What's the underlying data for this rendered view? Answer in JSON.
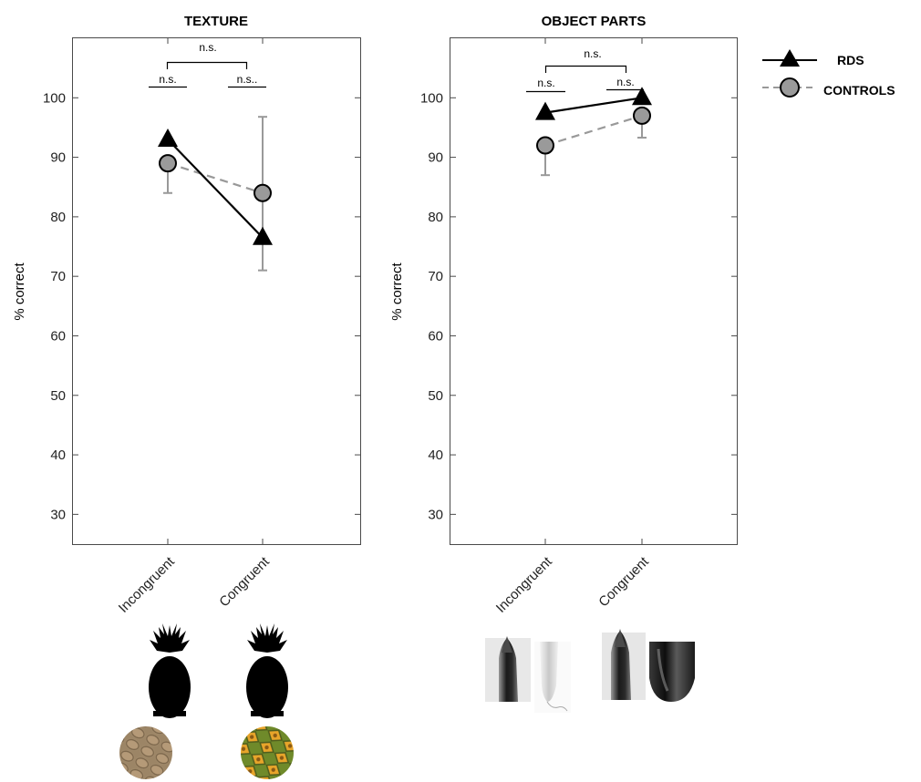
{
  "chart_data": [
    {
      "type": "line",
      "title": "TEXTURE",
      "ylabel": "% correct",
      "categories": [
        "Incongruent",
        "Congruent"
      ],
      "ylim": [
        25,
        110
      ],
      "yticks": [
        30,
        40,
        50,
        60,
        70,
        80,
        90,
        100
      ],
      "series": [
        {
          "name": "RDS",
          "values": [
            93,
            76.5
          ],
          "err_low": [
            null,
            null
          ],
          "err_high": [
            null,
            null
          ]
        },
        {
          "name": "CONTROLS",
          "values": [
            89,
            84
          ],
          "err_low": [
            84,
            71
          ],
          "err_high": [
            null,
            96.8
          ]
        }
      ],
      "annotations": {
        "top": "n.s.",
        "left": "n.s.",
        "right": "n.s.."
      },
      "stimuli": [
        "pineapple-silhouette",
        "snake-skin-texture-disc",
        "pineapple-silhouette",
        "pineapple-skin-texture-disc"
      ]
    },
    {
      "type": "line",
      "title": "OBJECT PARTS",
      "ylabel": "% correct",
      "categories": [
        "Incongruent",
        "Congruent"
      ],
      "ylim": [
        25,
        110
      ],
      "yticks": [
        30,
        40,
        50,
        60,
        70,
        80,
        90,
        100
      ],
      "series": [
        {
          "name": "RDS",
          "values": [
            97.5,
            100
          ],
          "err_low": [
            null,
            null
          ],
          "err_high": [
            null,
            null
          ]
        },
        {
          "name": "CONTROLS",
          "values": [
            92,
            97
          ],
          "err_low": [
            87,
            93.3
          ],
          "err_high": [
            null,
            null
          ]
        }
      ],
      "annotations": {
        "top": "n.s.",
        "left": "n.s.",
        "right": "n.s."
      },
      "stimuli": [
        "eggplant-tip-photo",
        "pestle-tip-photo",
        "eggplant-tip-photo",
        "eggplant-end-photo"
      ]
    }
  ],
  "legend": [
    {
      "name": "RDS",
      "marker": "triangle",
      "color": "#000000",
      "line": "solid"
    },
    {
      "name": "CONTROLS",
      "marker": "circle",
      "color": "#999999",
      "line": "dashed"
    }
  ],
  "colors": {
    "rds": "#000000",
    "controls_line": "#999999",
    "controls_fill": "#9a9a9a",
    "errorbar": "#999999"
  }
}
